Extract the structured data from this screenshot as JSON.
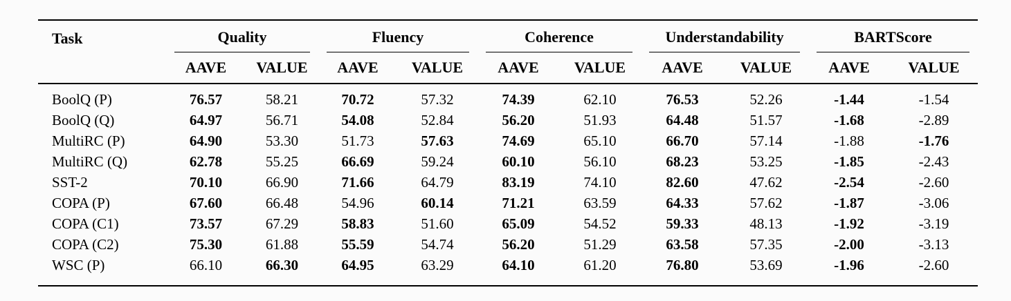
{
  "page": {
    "background_color": "#fbfbfb",
    "text_color": "#000000",
    "rule_color": "#000000"
  },
  "table": {
    "task_header": "Task",
    "groups": [
      {
        "label": "Quality"
      },
      {
        "label": "Fluency"
      },
      {
        "label": "Coherence"
      },
      {
        "label": "Understandability"
      },
      {
        "label": "BARTScore"
      }
    ],
    "subheaders": [
      "AAVE",
      "VALUE"
    ],
    "rows": [
      {
        "task": "BoolQ (P)",
        "cells": [
          {
            "v": "76.57",
            "b": true
          },
          {
            "v": "58.21",
            "b": false
          },
          {
            "v": "70.72",
            "b": true
          },
          {
            "v": "57.32",
            "b": false
          },
          {
            "v": "74.39",
            "b": true
          },
          {
            "v": "62.10",
            "b": false
          },
          {
            "v": "76.53",
            "b": true
          },
          {
            "v": "52.26",
            "b": false
          },
          {
            "v": "-1.44",
            "b": true
          },
          {
            "v": "-1.54",
            "b": false
          }
        ]
      },
      {
        "task": "BoolQ (Q)",
        "cells": [
          {
            "v": "64.97",
            "b": true
          },
          {
            "v": "56.71",
            "b": false
          },
          {
            "v": "54.08",
            "b": true
          },
          {
            "v": "52.84",
            "b": false
          },
          {
            "v": "56.20",
            "b": true
          },
          {
            "v": "51.93",
            "b": false
          },
          {
            "v": "64.48",
            "b": true
          },
          {
            "v": "51.57",
            "b": false
          },
          {
            "v": "-1.68",
            "b": true
          },
          {
            "v": "-2.89",
            "b": false
          }
        ]
      },
      {
        "task": "MultiRC (P)",
        "cells": [
          {
            "v": "64.90",
            "b": true
          },
          {
            "v": "53.30",
            "b": false
          },
          {
            "v": "51.73",
            "b": false
          },
          {
            "v": "57.63",
            "b": true
          },
          {
            "v": "74.69",
            "b": true
          },
          {
            "v": "65.10",
            "b": false
          },
          {
            "v": "66.70",
            "b": true
          },
          {
            "v": "57.14",
            "b": false
          },
          {
            "v": "-1.88",
            "b": false
          },
          {
            "v": "-1.76",
            "b": true
          }
        ]
      },
      {
        "task": "MultiRC (Q)",
        "cells": [
          {
            "v": "62.78",
            "b": true
          },
          {
            "v": "55.25",
            "b": false
          },
          {
            "v": "66.69",
            "b": true
          },
          {
            "v": "59.24",
            "b": false
          },
          {
            "v": "60.10",
            "b": true
          },
          {
            "v": "56.10",
            "b": false
          },
          {
            "v": "68.23",
            "b": true
          },
          {
            "v": "53.25",
            "b": false
          },
          {
            "v": "-1.85",
            "b": true
          },
          {
            "v": "-2.43",
            "b": false
          }
        ]
      },
      {
        "task": "SST-2",
        "cells": [
          {
            "v": "70.10",
            "b": true
          },
          {
            "v": "66.90",
            "b": false
          },
          {
            "v": "71.66",
            "b": true
          },
          {
            "v": "64.79",
            "b": false
          },
          {
            "v": "83.19",
            "b": true
          },
          {
            "v": "74.10",
            "b": false
          },
          {
            "v": "82.60",
            "b": true
          },
          {
            "v": "47.62",
            "b": false
          },
          {
            "v": "-2.54",
            "b": true
          },
          {
            "v": "-2.60",
            "b": false
          }
        ]
      },
      {
        "task": "COPA (P)",
        "cells": [
          {
            "v": "67.60",
            "b": true
          },
          {
            "v": "66.48",
            "b": false
          },
          {
            "v": "54.96",
            "b": false
          },
          {
            "v": "60.14",
            "b": true
          },
          {
            "v": "71.21",
            "b": true
          },
          {
            "v": "63.59",
            "b": false
          },
          {
            "v": "64.33",
            "b": true
          },
          {
            "v": "57.62",
            "b": false
          },
          {
            "v": "-1.87",
            "b": true
          },
          {
            "v": "-3.06",
            "b": false
          }
        ]
      },
      {
        "task": "COPA (C1)",
        "cells": [
          {
            "v": "73.57",
            "b": true
          },
          {
            "v": "67.29",
            "b": false
          },
          {
            "v": "58.83",
            "b": true
          },
          {
            "v": "51.60",
            "b": false
          },
          {
            "v": "65.09",
            "b": true
          },
          {
            "v": "54.52",
            "b": false
          },
          {
            "v": "59.33",
            "b": true
          },
          {
            "v": "48.13",
            "b": false
          },
          {
            "v": "-1.92",
            "b": true
          },
          {
            "v": "-3.19",
            "b": false
          }
        ]
      },
      {
        "task": "COPA (C2)",
        "cells": [
          {
            "v": "75.30",
            "b": true
          },
          {
            "v": "61.88",
            "b": false
          },
          {
            "v": "55.59",
            "b": true
          },
          {
            "v": "54.74",
            "b": false
          },
          {
            "v": "56.20",
            "b": true
          },
          {
            "v": "51.29",
            "b": false
          },
          {
            "v": "63.58",
            "b": true
          },
          {
            "v": "57.35",
            "b": false
          },
          {
            "v": "-2.00",
            "b": true
          },
          {
            "v": "-3.13",
            "b": false
          }
        ]
      },
      {
        "task": "WSC (P)",
        "cells": [
          {
            "v": "66.10",
            "b": false
          },
          {
            "v": "66.30",
            "b": true
          },
          {
            "v": "64.95",
            "b": true
          },
          {
            "v": "63.29",
            "b": false
          },
          {
            "v": "64.10",
            "b": true
          },
          {
            "v": "61.20",
            "b": false
          },
          {
            "v": "76.80",
            "b": true
          },
          {
            "v": "53.69",
            "b": false
          },
          {
            "v": "-1.96",
            "b": true
          },
          {
            "v": "-2.60",
            "b": false
          }
        ]
      }
    ]
  },
  "chart_data": {
    "type": "table",
    "columns": [
      "Task",
      "Quality AAVE",
      "Quality VALUE",
      "Fluency AAVE",
      "Fluency VALUE",
      "Coherence AAVE",
      "Coherence VALUE",
      "Understandability AAVE",
      "Understandability VALUE",
      "BARTScore AAVE",
      "BARTScore VALUE"
    ],
    "rows": [
      [
        "BoolQ (P)",
        76.57,
        58.21,
        70.72,
        57.32,
        74.39,
        62.1,
        76.53,
        52.26,
        -1.44,
        -1.54
      ],
      [
        "BoolQ (Q)",
        64.97,
        56.71,
        54.08,
        52.84,
        56.2,
        51.93,
        64.48,
        51.57,
        -1.68,
        -2.89
      ],
      [
        "MultiRC (P)",
        64.9,
        53.3,
        51.73,
        57.63,
        74.69,
        65.1,
        66.7,
        57.14,
        -1.88,
        -1.76
      ],
      [
        "MultiRC (Q)",
        62.78,
        55.25,
        66.69,
        59.24,
        60.1,
        56.1,
        68.23,
        53.25,
        -1.85,
        -2.43
      ],
      [
        "SST-2",
        70.1,
        66.9,
        71.66,
        64.79,
        83.19,
        74.1,
        82.6,
        47.62,
        -2.54,
        -2.6
      ],
      [
        "COPA (P)",
        67.6,
        66.48,
        54.96,
        60.14,
        71.21,
        63.59,
        64.33,
        57.62,
        -1.87,
        -3.06
      ],
      [
        "COPA (C1)",
        73.57,
        67.29,
        58.83,
        51.6,
        65.09,
        54.52,
        59.33,
        48.13,
        -1.92,
        -3.19
      ],
      [
        "COPA (C2)",
        75.3,
        61.88,
        55.59,
        54.74,
        56.2,
        51.29,
        63.58,
        57.35,
        -2.0,
        -3.13
      ],
      [
        "WSC (P)",
        66.1,
        66.3,
        64.95,
        63.29,
        64.1,
        61.2,
        76.8,
        53.69,
        -1.96,
        -2.6
      ]
    ]
  }
}
